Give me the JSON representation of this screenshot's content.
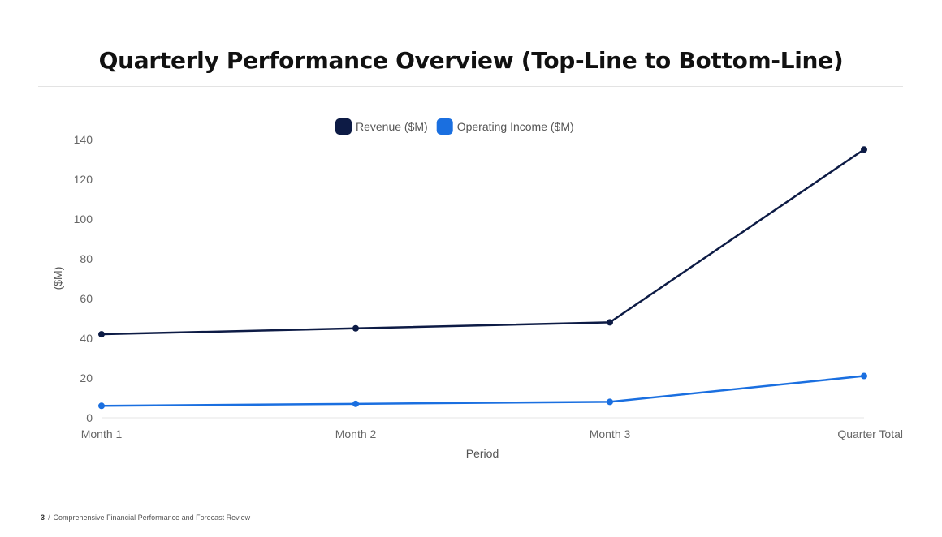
{
  "slide": {
    "title": "Quarterly Performance Overview (Top-Line to Bottom-Line)"
  },
  "footer": {
    "page_number": "3",
    "separator": "/",
    "text": "Comprehensive Financial Performance and Forecast Review"
  },
  "chart_data": {
    "type": "line",
    "categories": [
      "Month 1",
      "Month 2",
      "Month 3",
      "Quarter Total"
    ],
    "series": [
      {
        "name": "Revenue ($M)",
        "values": [
          42,
          45,
          48,
          135
        ],
        "color": "#0d1b45"
      },
      {
        "name": "Operating Income ($M)",
        "values": [
          6,
          7,
          8,
          21
        ],
        "color": "#1a6fe0"
      }
    ],
    "xlabel": "Period",
    "ylabel": "($M)",
    "ylim": [
      0,
      140
    ],
    "yticks": [
      0,
      20,
      40,
      60,
      80,
      100,
      120,
      140
    ],
    "grid": false,
    "legend_position": "top-center"
  }
}
